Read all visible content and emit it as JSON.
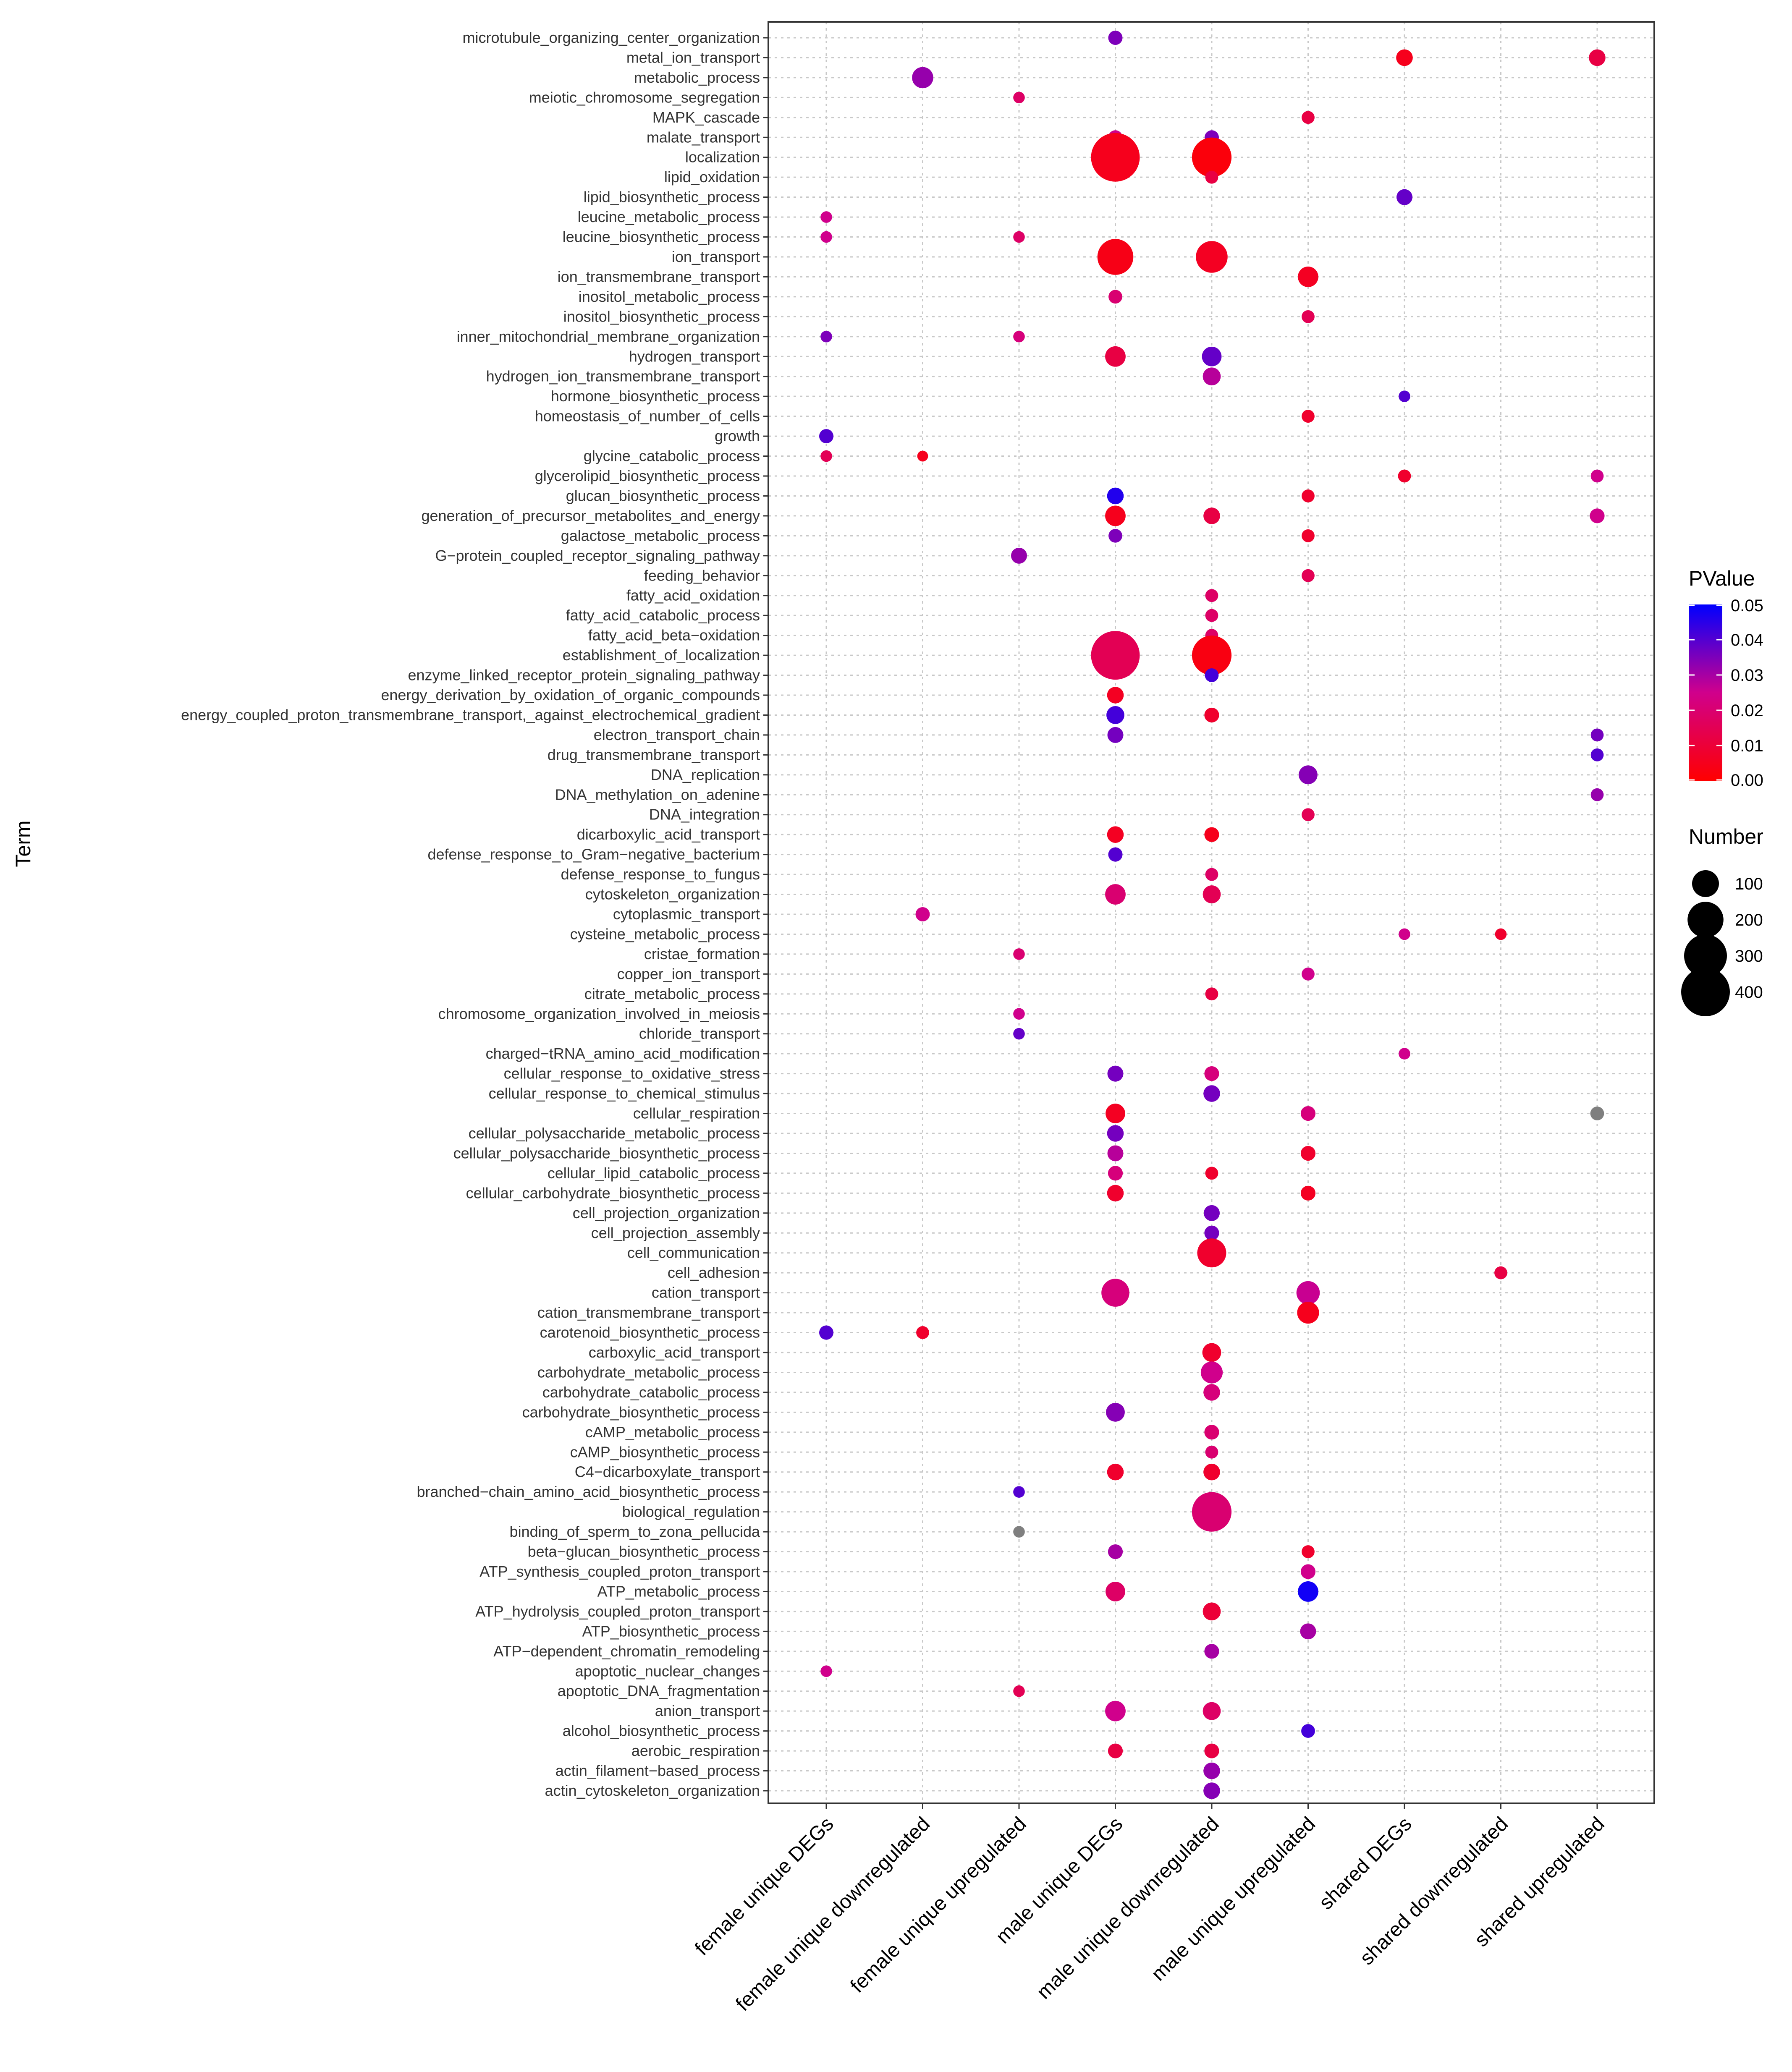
{
  "chart_data": {
    "type": "scatter",
    "title": "",
    "xlabel": "",
    "ylabel": "Term",
    "grid": true,
    "legend_placement": "right",
    "categories": [
      "female unique DEGs",
      "female unique downregulated",
      "female unique upregulated",
      "male unique DEGs",
      "male  unique  downregulated",
      "male  unique  upregulated",
      "shared DEGs",
      "shared downregulated",
      "shared upregulated"
    ],
    "terms": [
      "microtubule_organizing_center_organization",
      "metal_ion_transport",
      "metabolic_process",
      "meiotic_chromosome_segregation",
      "MAPK_cascade",
      "malate_transport",
      "localization",
      "lipid_oxidation",
      "lipid_biosynthetic_process",
      "leucine_metabolic_process",
      "leucine_biosynthetic_process",
      "ion_transport",
      "ion_transmembrane_transport",
      "inositol_metabolic_process",
      "inositol_biosynthetic_process",
      "inner_mitochondrial_membrane_organization",
      "hydrogen_transport",
      "hydrogen_ion_transmembrane_transport",
      "hormone_biosynthetic_process",
      "homeostasis_of_number_of_cells",
      "growth",
      "glycine_catabolic_process",
      "glycerolipid_biosynthetic_process",
      "glucan_biosynthetic_process",
      "generation_of_precursor_metabolites_and_energy",
      "galactose_metabolic_process",
      "G−protein_coupled_receptor_signaling_pathway",
      "feeding_behavior",
      "fatty_acid_oxidation",
      "fatty_acid_catabolic_process",
      "fatty_acid_beta−oxidation",
      "establishment_of_localization",
      "enzyme_linked_receptor_protein_signaling_pathway",
      "energy_derivation_by_oxidation_of_organic_compounds",
      "energy_coupled_proton_transmembrane_transport,_against_electrochemical_gradient",
      "electron_transport_chain",
      "drug_transmembrane_transport",
      "DNA_replication",
      "DNA_methylation_on_adenine",
      "DNA_integration",
      "dicarboxylic_acid_transport",
      "defense_response_to_Gram−negative_bacterium",
      "defense_response_to_fungus",
      "cytoskeleton_organization",
      "cytoplasmic_transport",
      "cysteine_metabolic_process",
      "cristae_formation",
      "copper_ion_transport",
      "citrate_metabolic_process",
      "chromosome_organization_involved_in_meiosis",
      "chloride_transport",
      "charged−tRNA_amino_acid_modification",
      "cellular_response_to_oxidative_stress",
      "cellular_response_to_chemical_stimulus",
      "cellular_respiration",
      "cellular_polysaccharide_metabolic_process",
      "cellular_polysaccharide_biosynthetic_process",
      "cellular_lipid_catabolic_process",
      "cellular_carbohydrate_biosynthetic_process",
      "cell_projection_organization",
      "cell_projection_assembly",
      "cell_communication",
      "cell_adhesion",
      "cation_transport",
      "cation_transmembrane_transport",
      "carotenoid_biosynthetic_process",
      "carboxylic_acid_transport",
      "carbohydrate_metabolic_process",
      "carbohydrate_catabolic_process",
      "carbohydrate_biosynthetic_process",
      "cAMP_metabolic_process",
      "cAMP_biosynthetic_process",
      "C4−dicarboxylate_transport",
      "branched−chain_amino_acid_biosynthetic_process",
      "biological_regulation",
      "binding_of_sperm_to_zona_pellucida",
      "beta−glucan_biosynthetic_process",
      "ATP_synthesis_coupled_proton_transport",
      "ATP_metabolic_process",
      "ATP_hydrolysis_coupled_proton_transport",
      "ATP_biosynthetic_process",
      "ATP−dependent_chromatin_remodeling",
      "apoptotic_nuclear_changes",
      "apoptotic_DNA_fragmentation",
      "anion_transport",
      "alcohol_biosynthetic_process",
      "aerobic_respiration",
      "actin_filament−based_process",
      "actin_cytoskeleton_organization"
    ],
    "points": [
      {
        "term": 0,
        "x": 3,
        "number": 18,
        "pvalue": 0.035
      },
      {
        "term": 1,
        "x": 6,
        "number": 28,
        "pvalue": 0.005
      },
      {
        "term": 1,
        "x": 8,
        "number": 28,
        "pvalue": 0.012
      },
      {
        "term": 2,
        "x": 1,
        "number": 55,
        "pvalue": 0.032
      },
      {
        "term": 3,
        "x": 2,
        "number": 9,
        "pvalue": 0.018
      },
      {
        "term": 4,
        "x": 5,
        "number": 13,
        "pvalue": 0.012
      },
      {
        "term": 5,
        "x": 3,
        "number": 18,
        "pvalue": 0.025
      },
      {
        "term": 5,
        "x": 4,
        "number": 18,
        "pvalue": 0.035
      },
      {
        "term": 6,
        "x": 3,
        "number": 400,
        "pvalue": 0.005
      },
      {
        "term": 6,
        "x": 4,
        "number": 250,
        "pvalue": 0.002
      },
      {
        "term": 7,
        "x": 4,
        "number": 13,
        "pvalue": 0.012
      },
      {
        "term": 8,
        "x": 6,
        "number": 25,
        "pvalue": 0.038
      },
      {
        "term": 9,
        "x": 0,
        "number": 9,
        "pvalue": 0.025
      },
      {
        "term": 10,
        "x": 0,
        "number": 9,
        "pvalue": 0.025
      },
      {
        "term": 10,
        "x": 2,
        "number": 9,
        "pvalue": 0.018
      },
      {
        "term": 11,
        "x": 3,
        "number": 200,
        "pvalue": 0.004
      },
      {
        "term": 11,
        "x": 4,
        "number": 150,
        "pvalue": 0.006
      },
      {
        "term": 12,
        "x": 5,
        "number": 50,
        "pvalue": 0.006
      },
      {
        "term": 13,
        "x": 3,
        "number": 16,
        "pvalue": 0.02
      },
      {
        "term": 14,
        "x": 5,
        "number": 13,
        "pvalue": 0.015
      },
      {
        "term": 15,
        "x": 0,
        "number": 9,
        "pvalue": 0.035
      },
      {
        "term": 15,
        "x": 2,
        "number": 9,
        "pvalue": 0.022
      },
      {
        "term": 16,
        "x": 3,
        "number": 50,
        "pvalue": 0.012
      },
      {
        "term": 16,
        "x": 4,
        "number": 45,
        "pvalue": 0.038
      },
      {
        "term": 17,
        "x": 4,
        "number": 35,
        "pvalue": 0.028
      },
      {
        "term": 18,
        "x": 6,
        "number": 9,
        "pvalue": 0.04
      },
      {
        "term": 19,
        "x": 5,
        "number": 13,
        "pvalue": 0.008
      },
      {
        "term": 20,
        "x": 0,
        "number": 18,
        "pvalue": 0.04
      },
      {
        "term": 21,
        "x": 0,
        "number": 9,
        "pvalue": 0.015
      },
      {
        "term": 21,
        "x": 1,
        "number": 7,
        "pvalue": 0.005
      },
      {
        "term": 22,
        "x": 6,
        "number": 13,
        "pvalue": 0.008
      },
      {
        "term": 22,
        "x": 8,
        "number": 13,
        "pvalue": 0.025
      },
      {
        "term": 23,
        "x": 3,
        "number": 28,
        "pvalue": 0.046
      },
      {
        "term": 23,
        "x": 5,
        "number": 13,
        "pvalue": 0.008
      },
      {
        "term": 24,
        "x": 3,
        "number": 50,
        "pvalue": 0.005
      },
      {
        "term": 24,
        "x": 4,
        "number": 28,
        "pvalue": 0.012
      },
      {
        "term": 24,
        "x": 8,
        "number": 20,
        "pvalue": 0.025
      },
      {
        "term": 25,
        "x": 3,
        "number": 16,
        "pvalue": 0.035
      },
      {
        "term": 25,
        "x": 5,
        "number": 13,
        "pvalue": 0.008
      },
      {
        "term": 26,
        "x": 2,
        "number": 25,
        "pvalue": 0.032
      },
      {
        "term": 27,
        "x": 5,
        "number": 13,
        "pvalue": 0.015
      },
      {
        "term": 28,
        "x": 4,
        "number": 13,
        "pvalue": 0.018
      },
      {
        "term": 29,
        "x": 4,
        "number": 13,
        "pvalue": 0.018
      },
      {
        "term": 30,
        "x": 4,
        "number": 13,
        "pvalue": 0.018
      },
      {
        "term": 31,
        "x": 3,
        "number": 400,
        "pvalue": 0.015
      },
      {
        "term": 31,
        "x": 4,
        "number": 250,
        "pvalue": 0.003
      },
      {
        "term": 32,
        "x": 4,
        "number": 16,
        "pvalue": 0.042
      },
      {
        "term": 33,
        "x": 3,
        "number": 28,
        "pvalue": 0.006
      },
      {
        "term": 34,
        "x": 3,
        "number": 35,
        "pvalue": 0.042
      },
      {
        "term": 34,
        "x": 4,
        "number": 20,
        "pvalue": 0.008
      },
      {
        "term": 35,
        "x": 3,
        "number": 25,
        "pvalue": 0.036
      },
      {
        "term": 35,
        "x": 8,
        "number": 13,
        "pvalue": 0.036
      },
      {
        "term": 36,
        "x": 8,
        "number": 13,
        "pvalue": 0.04
      },
      {
        "term": 37,
        "x": 5,
        "number": 40,
        "pvalue": 0.034
      },
      {
        "term": 38,
        "x": 8,
        "number": 13,
        "pvalue": 0.032
      },
      {
        "term": 39,
        "x": 5,
        "number": 13,
        "pvalue": 0.015
      },
      {
        "term": 40,
        "x": 3,
        "number": 28,
        "pvalue": 0.006
      },
      {
        "term": 40,
        "x": 4,
        "number": 20,
        "pvalue": 0.005
      },
      {
        "term": 41,
        "x": 3,
        "number": 18,
        "pvalue": 0.04
      },
      {
        "term": 42,
        "x": 4,
        "number": 13,
        "pvalue": 0.018
      },
      {
        "term": 43,
        "x": 3,
        "number": 50,
        "pvalue": 0.02
      },
      {
        "term": 43,
        "x": 4,
        "number": 35,
        "pvalue": 0.015
      },
      {
        "term": 44,
        "x": 1,
        "number": 18,
        "pvalue": 0.025
      },
      {
        "term": 45,
        "x": 6,
        "number": 9,
        "pvalue": 0.025
      },
      {
        "term": 45,
        "x": 7,
        "number": 9,
        "pvalue": 0.008
      },
      {
        "term": 46,
        "x": 2,
        "number": 9,
        "pvalue": 0.02
      },
      {
        "term": 47,
        "x": 5,
        "number": 13,
        "pvalue": 0.025
      },
      {
        "term": 48,
        "x": 4,
        "number": 13,
        "pvalue": 0.012
      },
      {
        "term": 49,
        "x": 2,
        "number": 9,
        "pvalue": 0.025
      },
      {
        "term": 50,
        "x": 2,
        "number": 9,
        "pvalue": 0.038
      },
      {
        "term": 51,
        "x": 6,
        "number": 9,
        "pvalue": 0.025
      },
      {
        "term": 52,
        "x": 3,
        "number": 25,
        "pvalue": 0.036
      },
      {
        "term": 52,
        "x": 4,
        "number": 20,
        "pvalue": 0.022
      },
      {
        "term": 53,
        "x": 4,
        "number": 28,
        "pvalue": 0.036
      },
      {
        "term": 54,
        "x": 3,
        "number": 45,
        "pvalue": 0.006
      },
      {
        "term": 54,
        "x": 5,
        "number": 20,
        "pvalue": 0.022
      },
      {
        "term": 54,
        "x": 8,
        "number": 16,
        "pvalue": 0.052
      },
      {
        "term": 55,
        "x": 3,
        "number": 28,
        "pvalue": 0.036
      },
      {
        "term": 56,
        "x": 3,
        "number": 25,
        "pvalue": 0.028
      },
      {
        "term": 56,
        "x": 5,
        "number": 20,
        "pvalue": 0.008
      },
      {
        "term": 57,
        "x": 3,
        "number": 20,
        "pvalue": 0.022
      },
      {
        "term": 57,
        "x": 4,
        "number": 13,
        "pvalue": 0.008
      },
      {
        "term": 58,
        "x": 3,
        "number": 28,
        "pvalue": 0.008
      },
      {
        "term": 58,
        "x": 5,
        "number": 20,
        "pvalue": 0.006
      },
      {
        "term": 59,
        "x": 4,
        "number": 25,
        "pvalue": 0.036
      },
      {
        "term": 60,
        "x": 4,
        "number": 20,
        "pvalue": 0.036
      },
      {
        "term": 61,
        "x": 4,
        "number": 120,
        "pvalue": 0.008
      },
      {
        "term": 62,
        "x": 7,
        "number": 13,
        "pvalue": 0.012
      },
      {
        "term": 63,
        "x": 3,
        "number": 110,
        "pvalue": 0.022
      },
      {
        "term": 63,
        "x": 5,
        "number": 70,
        "pvalue": 0.026
      },
      {
        "term": 64,
        "x": 5,
        "number": 60,
        "pvalue": 0.005
      },
      {
        "term": 65,
        "x": 0,
        "number": 18,
        "pvalue": 0.04
      },
      {
        "term": 65,
        "x": 1,
        "number": 13,
        "pvalue": 0.008
      },
      {
        "term": 66,
        "x": 4,
        "number": 40,
        "pvalue": 0.008
      },
      {
        "term": 67,
        "x": 4,
        "number": 60,
        "pvalue": 0.025
      },
      {
        "term": 68,
        "x": 4,
        "number": 28,
        "pvalue": 0.022
      },
      {
        "term": 69,
        "x": 3,
        "number": 40,
        "pvalue": 0.034
      },
      {
        "term": 70,
        "x": 4,
        "number": 20,
        "pvalue": 0.02
      },
      {
        "term": 71,
        "x": 4,
        "number": 13,
        "pvalue": 0.02
      },
      {
        "term": 72,
        "x": 3,
        "number": 28,
        "pvalue": 0.008
      },
      {
        "term": 72,
        "x": 4,
        "number": 28,
        "pvalue": 0.008
      },
      {
        "term": 73,
        "x": 2,
        "number": 9,
        "pvalue": 0.04
      },
      {
        "term": 74,
        "x": 4,
        "number": 250,
        "pvalue": 0.02
      },
      {
        "term": 75,
        "x": 2,
        "number": 9,
        "pvalue": 0.052
      },
      {
        "term": 76,
        "x": 3,
        "number": 20,
        "pvalue": 0.03
      },
      {
        "term": 76,
        "x": 5,
        "number": 13,
        "pvalue": 0.008
      },
      {
        "term": 77,
        "x": 5,
        "number": 20,
        "pvalue": 0.025
      },
      {
        "term": 78,
        "x": 3,
        "number": 45,
        "pvalue": 0.018
      },
      {
        "term": 78,
        "x": 5,
        "number": 50,
        "pvalue": 0.048
      },
      {
        "term": 79,
        "x": 4,
        "number": 35,
        "pvalue": 0.01
      },
      {
        "term": 80,
        "x": 5,
        "number": 25,
        "pvalue": 0.03
      },
      {
        "term": 81,
        "x": 4,
        "number": 20,
        "pvalue": 0.03
      },
      {
        "term": 82,
        "x": 0,
        "number": 9,
        "pvalue": 0.025
      },
      {
        "term": 83,
        "x": 2,
        "number": 9,
        "pvalue": 0.015
      },
      {
        "term": 84,
        "x": 3,
        "number": 50,
        "pvalue": 0.025
      },
      {
        "term": 84,
        "x": 4,
        "number": 35,
        "pvalue": 0.018
      },
      {
        "term": 85,
        "x": 5,
        "number": 16,
        "pvalue": 0.042
      },
      {
        "term": 86,
        "x": 3,
        "number": 20,
        "pvalue": 0.012
      },
      {
        "term": 86,
        "x": 4,
        "number": 20,
        "pvalue": 0.012
      },
      {
        "term": 87,
        "x": 4,
        "number": 28,
        "pvalue": 0.032
      },
      {
        "term": 88,
        "x": 4,
        "number": 28,
        "pvalue": 0.034
      }
    ],
    "legend": {
      "color_title": "PValue",
      "color_ticks": [
        "0.05",
        "0.04",
        "0.03",
        "0.02",
        "0.01",
        "0.00"
      ],
      "color_tick_values": [
        0.05,
        0.04,
        0.03,
        0.02,
        0.01,
        0.0
      ],
      "color_range": [
        0.0,
        0.05
      ],
      "color_low": "#ff0000",
      "color_mid": "#d0008c",
      "color_high": "#0000ff",
      "na_color": "#7f7f7f",
      "size_title": "Number",
      "size_ticks": [
        "100",
        "200",
        "300",
        "400"
      ],
      "size_tick_values": [
        100,
        200,
        300,
        400
      ]
    }
  }
}
